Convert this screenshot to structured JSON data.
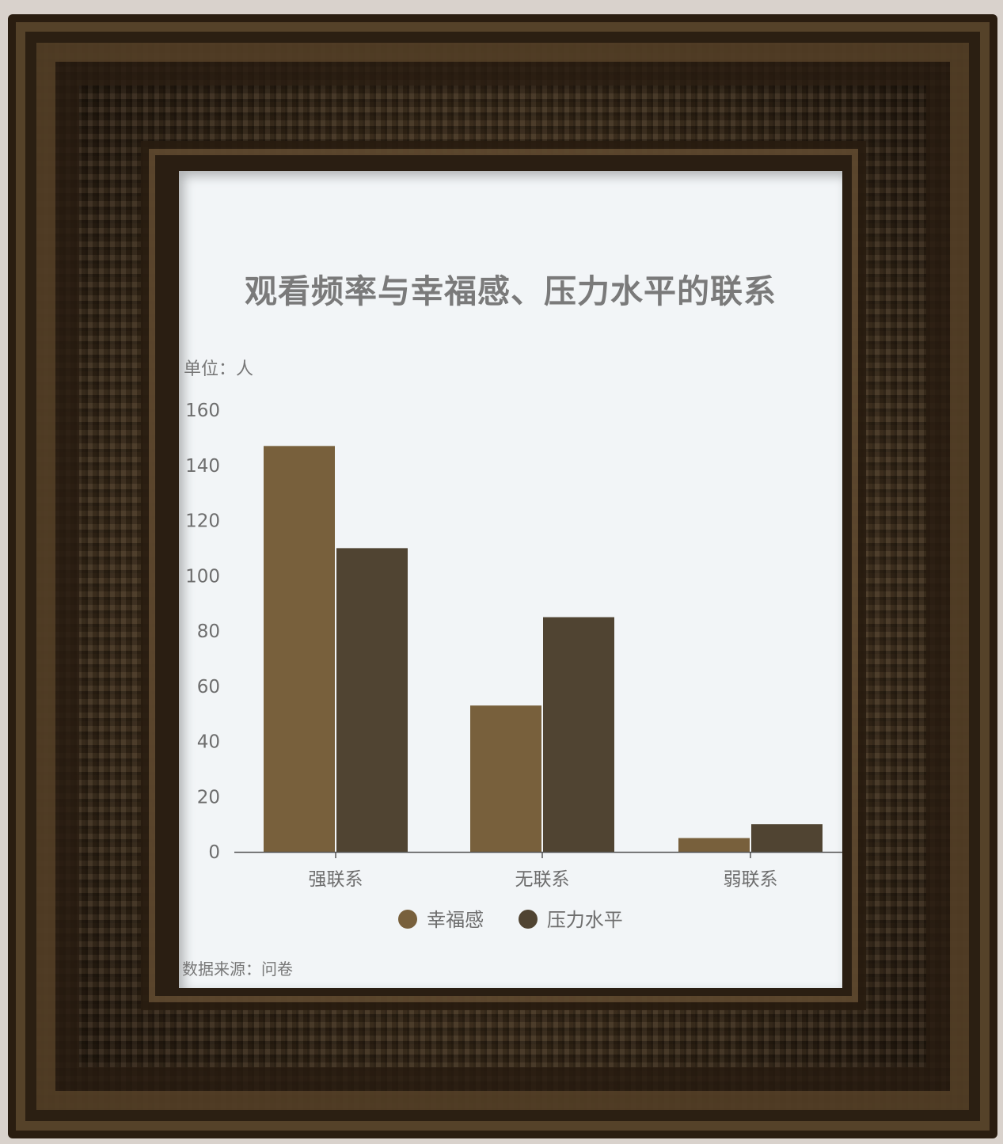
{
  "chart_data": {
    "type": "bar",
    "title": "观看频率与幸福感、压力水平的联系",
    "unit_label": "单位：人",
    "source_label": "数据来源：问卷",
    "categories": [
      "强联系",
      "无联系",
      "弱联系"
    ],
    "series": [
      {
        "name": "幸福感",
        "values": [
          147,
          53,
          5
        ],
        "color": "#78603c"
      },
      {
        "name": "压力水平",
        "values": [
          110,
          85,
          10
        ],
        "color": "#504432"
      }
    ],
    "ylim": [
      0,
      160
    ],
    "yticks": [
      0,
      20,
      40,
      60,
      80,
      100,
      120,
      140,
      160
    ],
    "grid": false,
    "legend": "bottom"
  }
}
